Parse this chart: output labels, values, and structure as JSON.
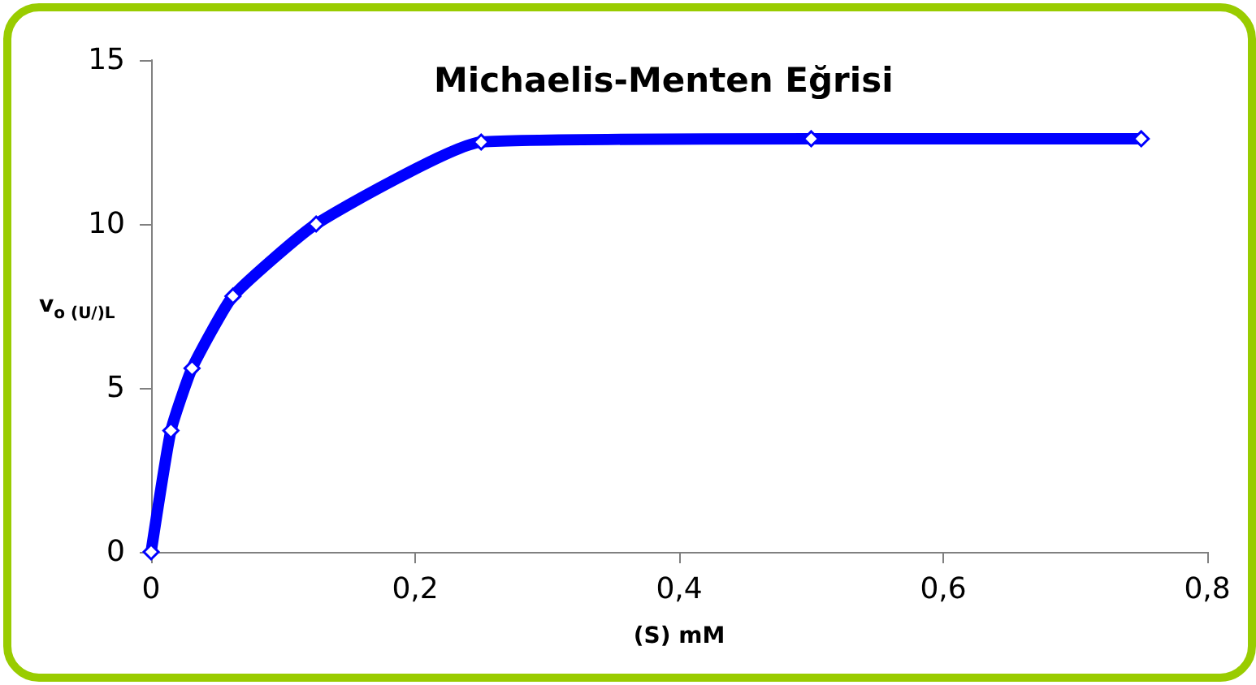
{
  "chart_data": {
    "type": "line",
    "title": "Michaelis-Menten Eğrisi",
    "xlabel": "(S) mM",
    "ylabel": "v$_{o (U/)L}$",
    "x": [
      0,
      0.015,
      0.031,
      0.062,
      0.125,
      0.25,
      0.5,
      0.75
    ],
    "series": [
      {
        "color": "#0000ff",
        "values": [
          0,
          3.7,
          5.6,
          7.8,
          10,
          12.5,
          12.6,
          12.6
        ]
      }
    ],
    "xlim": [
      0,
      0.8
    ],
    "xticks": [
      0,
      {
        "value": 0.2,
        "label": "0,2"
      },
      {
        "value": 0.4,
        "label": "0,4"
      },
      {
        "value": 0.6,
        "label": "0,6"
      },
      {
        "value": 0.8,
        "label": "0,8"
      }
    ],
    "ylim": [
      0,
      15
    ],
    "yticks": [
      0,
      5,
      10,
      15
    ],
    "grid": false,
    "marker": "diamond",
    "line_style": "solid"
  }
}
